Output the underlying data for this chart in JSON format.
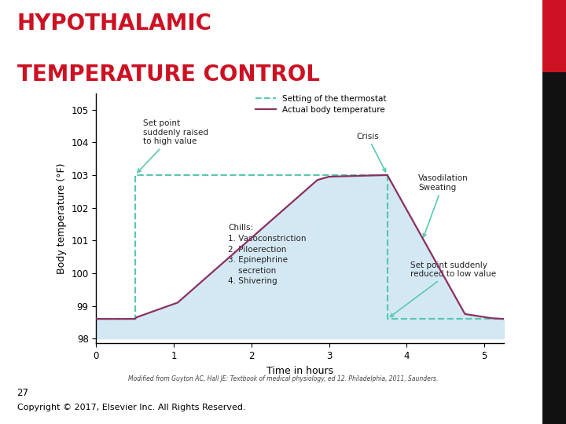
{
  "title_line1": "HYPOTHALAMIC",
  "title_line2": "TEMPERATURE CONTROL",
  "title_color": "#cc1122",
  "title_fontsize": 20,
  "title_fontweight": "bold",
  "background_color": "#ffffff",
  "plot_bg_color": "#ffffff",
  "fill_color": "#d4e8f4",
  "xlabel": "Time in hours",
  "ylabel": "Body temperature (°F)",
  "xlim": [
    0,
    5.25
  ],
  "ylim": [
    97.85,
    105.5
  ],
  "yticks": [
    98,
    99,
    100,
    101,
    102,
    103,
    104,
    105
  ],
  "xticks": [
    0,
    1,
    2,
    3,
    4,
    5
  ],
  "thermostat_x": [
    0,
    0.5,
    0.5,
    3.75,
    3.75,
    5.25
  ],
  "thermostat_y": [
    98.6,
    98.6,
    103.0,
    103.0,
    98.6,
    98.6
  ],
  "thermostat_color": "#5bc8b0",
  "body_temp_x": [
    0,
    0.5,
    0.52,
    1.05,
    2.85,
    3.0,
    3.75,
    4.75,
    5.1,
    5.25
  ],
  "body_temp_y": [
    98.6,
    98.6,
    98.65,
    99.1,
    102.85,
    102.95,
    103.0,
    98.75,
    98.62,
    98.6
  ],
  "body_temp_color": "#8b3060",
  "legend_thermostat_label": "Setting of the thermostat",
  "legend_body_label": "Actual body temperature",
  "ann_color": "#5bc8b0",
  "text_color": "#222222",
  "sidebar_red": "#cc1122",
  "sidebar_black": "#111111",
  "footnote": "27",
  "copyright": "Copyright © 2017, Elsevier Inc. All Rights Reserved.",
  "source_text": "Modified from Guyton AC, Hall JE: Textbook of medical physiology, ed 12. Philadelphia, 2011, Saunders."
}
